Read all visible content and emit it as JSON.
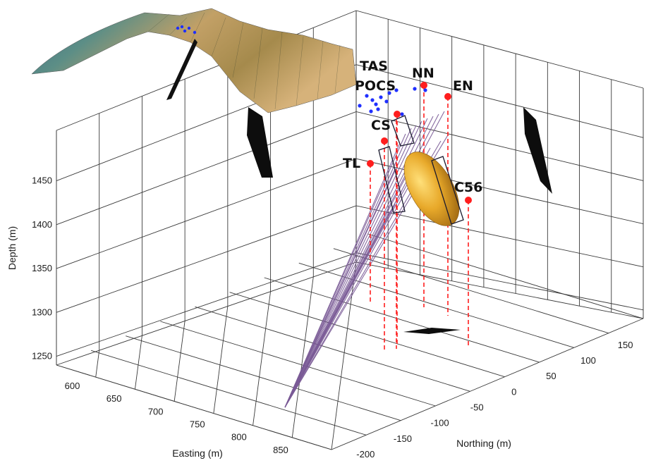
{
  "chart_data": {
    "type": "scatter",
    "projection": "3d",
    "title": "",
    "xlabel": "Easting (m)",
    "ylabel": "Northing (m)",
    "zlabel": "Depth (m)",
    "x_ticks": [
      "600",
      "650",
      "700",
      "750",
      "800",
      "850"
    ],
    "y_ticks": [
      "-200",
      "-150",
      "-100",
      "-50",
      "0",
      "50",
      "100",
      "150"
    ],
    "z_ticks": [
      "1250",
      "1300",
      "1350",
      "1400",
      "1450"
    ],
    "xlim": [
      580,
      870
    ],
    "ylim": [
      -220,
      170
    ],
    "zlim": [
      1240,
      1480
    ],
    "grid": true,
    "stations": [
      {
        "name": "TAS",
        "color": "#0000ff",
        "marker": "dot-cluster"
      },
      {
        "name": "POCS",
        "color": "#0000ff",
        "marker": "dot-cluster"
      },
      {
        "name": "NN",
        "color": "#ff0000",
        "marker": "circle"
      },
      {
        "name": "EN",
        "color": "#ff0000",
        "marker": "circle"
      },
      {
        "name": "CS",
        "color": "#ff0000",
        "marker": "circle"
      },
      {
        "name": "TL",
        "color": "#ff0000",
        "marker": "circle"
      },
      {
        "name": "C56",
        "color": "#ff0000",
        "marker": "circle"
      }
    ],
    "elements": {
      "topography_surface": "terrain mesh (blue-green to tan)",
      "ore_body": "orange ellipsoid",
      "ray_fan": "purple lines from source at depth",
      "projections": "black shadow shapes on walls and floor",
      "station_lines": "red dashed vertical lines"
    }
  }
}
